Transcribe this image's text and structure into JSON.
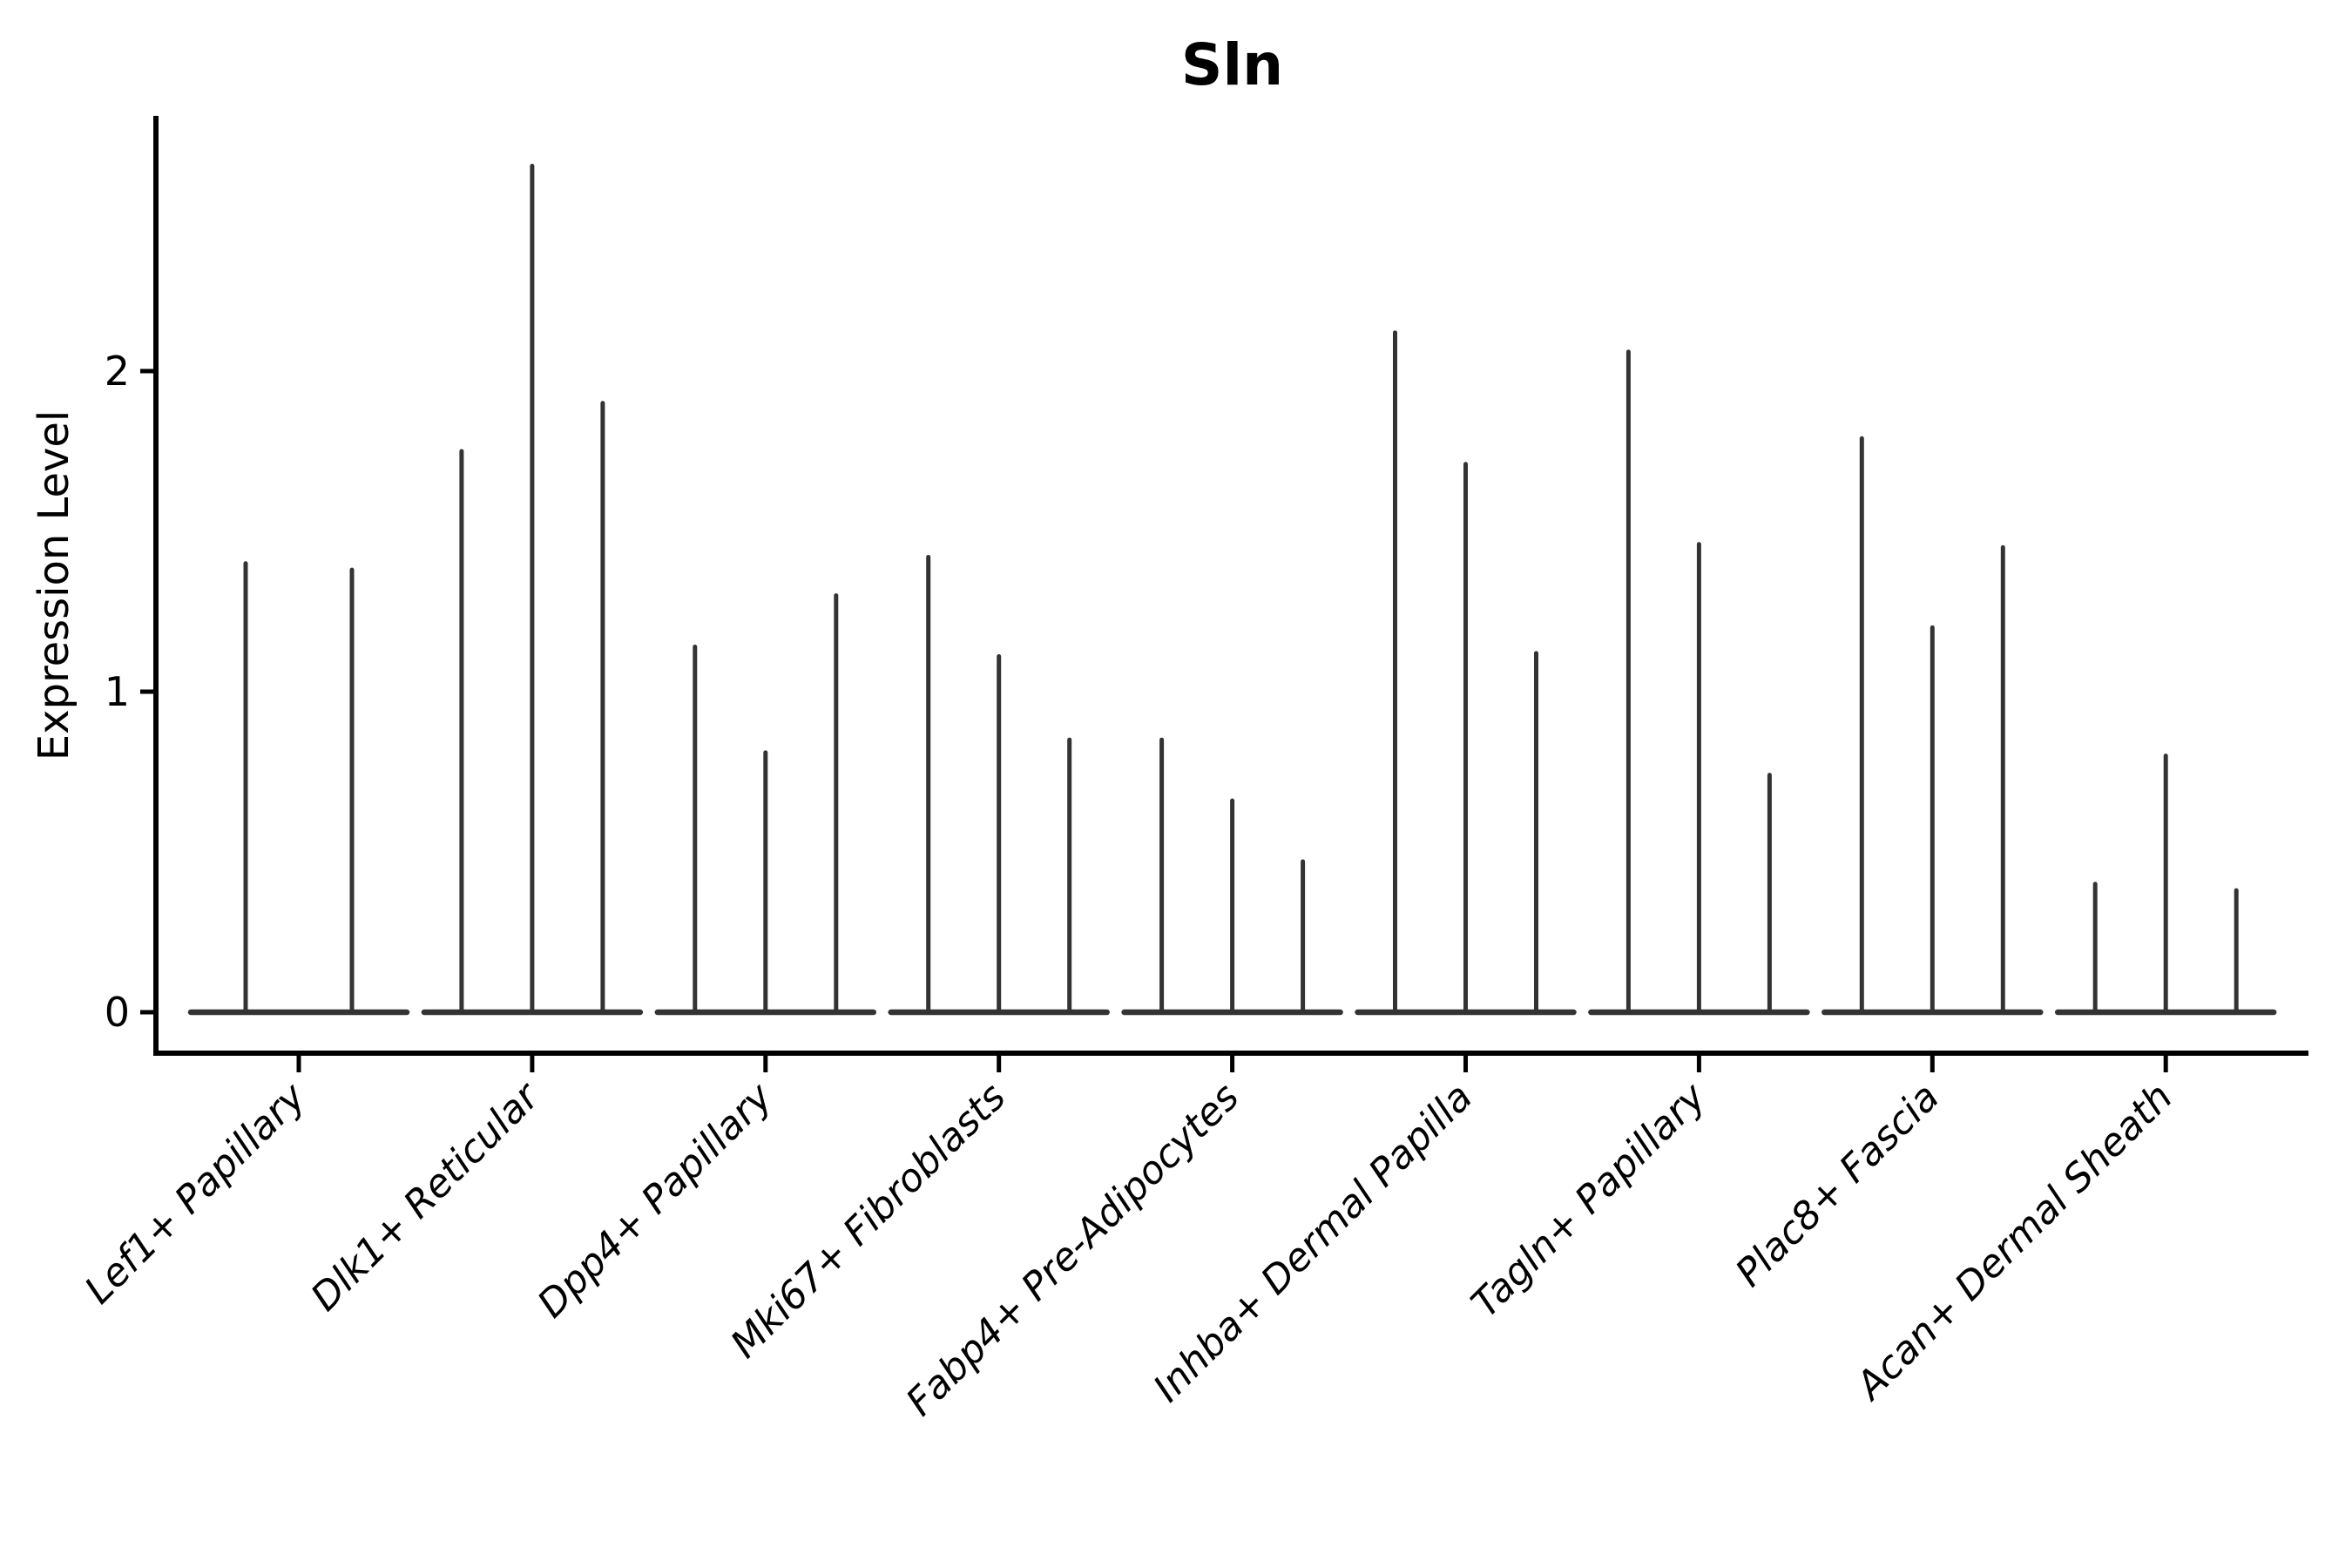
{
  "chart_data": {
    "type": "violin",
    "title": "Sln",
    "ylabel": "Expression Level",
    "xlabel": "",
    "ylim": [
      0,
      2.8
    ],
    "yticks": [
      "0",
      "1",
      "2"
    ],
    "grid": false,
    "legend": "none",
    "style": "needle-thin split violins (2-3 per category), distribution bulk flat at 0",
    "categories": [
      "Lef1+ Papillary",
      "Dlk1+ Reticular",
      "Dpp4+ Papillary",
      "Mki67+ Fibroblasts",
      "Fabp4+ Pre-Adipocytes",
      "Inhba+ Dermal Papilla",
      "Tagln+ Papillary",
      "Plac8+ Fascia",
      "Acan+ Dermal Sheath"
    ],
    "groups": [
      {
        "category": "Lef1+ Papillary",
        "violin_max_values": [
          1.4,
          1.38
        ]
      },
      {
        "category": "Dlk1+ Reticular",
        "violin_max_values": [
          1.75,
          2.64,
          1.9
        ]
      },
      {
        "category": "Dpp4+ Papillary",
        "violin_max_values": [
          1.14,
          0.81,
          1.3
        ]
      },
      {
        "category": "Mki67+ Fibroblasts",
        "violin_max_values": [
          1.42,
          1.11,
          0.85
        ]
      },
      {
        "category": "Fabp4+ Pre-Adipocytes",
        "violin_max_values": [
          0.85,
          0.66,
          0.47
        ]
      },
      {
        "category": "Inhba+ Dermal Papilla",
        "violin_max_values": [
          2.12,
          1.71,
          1.12
        ]
      },
      {
        "category": "Tagln+ Papillary",
        "violin_max_values": [
          2.06,
          1.46,
          0.74
        ]
      },
      {
        "category": "Plac8+ Fascia",
        "violin_max_values": [
          1.79,
          1.2,
          1.45
        ]
      },
      {
        "category": "Acan+ Dermal Sheath",
        "violin_max_values": [
          0.4,
          0.8,
          0.38
        ]
      }
    ],
    "colors": {
      "violin": "#333333",
      "axis": "#000000",
      "text": "#000000",
      "background": "#ffffff"
    }
  }
}
